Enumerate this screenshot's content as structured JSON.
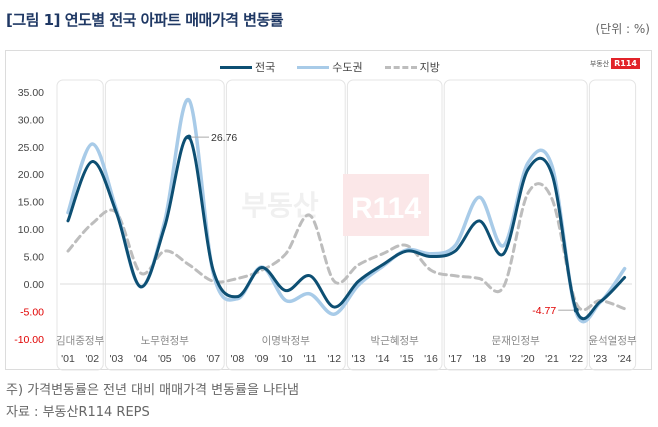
{
  "header": {
    "title": "[그림 1] 연도별 전국 아파트 매매가격 변동률",
    "unit": "(단위 : %)"
  },
  "logo": {
    "text": "부동산",
    "badge": "R114"
  },
  "watermark": {
    "text": "부동산",
    "badge": "R114"
  },
  "legend": [
    {
      "label": "전국",
      "color": "#0d4f73",
      "style": "solid"
    },
    {
      "label": "수도권",
      "color": "#a8cbe8",
      "style": "solid"
    },
    {
      "label": "지방",
      "color": "#bdbdbd",
      "style": "dashed"
    }
  ],
  "footer": {
    "note": "주) 가격변동률은 전년 대비 매매가격 변동률을 나타냄",
    "source": "자료 : 부동산R114 REPS"
  },
  "chart_data": {
    "type": "line",
    "title": "연도별 전국 아파트 매매가격 변동률",
    "xlabel": "",
    "ylabel": "(단위 : %)",
    "ylim": [
      -10,
      35
    ],
    "yticks": [
      "35.00",
      "30.00",
      "25.00",
      "20.00",
      "15.00",
      "10.00",
      "5.00",
      "0.00",
      "-5.00",
      "-10.00"
    ],
    "categories": [
      "'01",
      "'02",
      "'03",
      "'04",
      "'05",
      "'06",
      "'07",
      "'08",
      "'09",
      "'10",
      "'11",
      "'12",
      "'13",
      "'14",
      "'15",
      "'16",
      "'17",
      "'18",
      "'19",
      "'20",
      "'21",
      "'22",
      "'23",
      "'24"
    ],
    "series": [
      {
        "name": "전국",
        "color": "#0d4f73",
        "values": [
          11.5,
          22.3,
          13.0,
          -0.5,
          10.5,
          26.76,
          2.5,
          -2.3,
          3.0,
          -1.2,
          1.5,
          -4.2,
          0.5,
          3.5,
          6.0,
          5.0,
          6.0,
          11.5,
          5.5,
          20.8,
          20.0,
          -4.77,
          -3.2,
          1.2
        ]
      },
      {
        "name": "수도권",
        "color": "#a8cbe8",
        "values": [
          13.0,
          25.5,
          13.5,
          -0.5,
          11.5,
          33.5,
          2.0,
          -2.7,
          3.1,
          -3.0,
          -1.8,
          -5.5,
          -0.2,
          3.2,
          6.2,
          5.5,
          7.0,
          15.8,
          7.0,
          22.0,
          21.5,
          -5.2,
          -3.3,
          2.8
        ]
      },
      {
        "name": "지방",
        "color": "#bdbdbd",
        "values": [
          6.0,
          11.0,
          13.0,
          2.0,
          6.0,
          3.5,
          0.5,
          1.0,
          2.5,
          5.5,
          12.5,
          0.5,
          3.5,
          5.5,
          7.0,
          2.5,
          1.5,
          1.0,
          -0.5,
          16.5,
          15.5,
          -3.5,
          -3.0,
          -4.5
        ]
      }
    ],
    "annotations": [
      {
        "label": "26.76",
        "category": "'06",
        "series": "전국",
        "color": "#333333"
      },
      {
        "label": "-4.77",
        "category": "'22",
        "series": "전국",
        "color": "#e00000"
      }
    ],
    "periods": [
      {
        "label": "김대중정부",
        "start": "'01",
        "end": "'02"
      },
      {
        "label": "노무현정부",
        "start": "'03",
        "end": "'07"
      },
      {
        "label": "이명박정부",
        "start": "'08",
        "end": "'12"
      },
      {
        "label": "박근혜정부",
        "start": "'13",
        "end": "'16"
      },
      {
        "label": "문재인정부",
        "start": "'17",
        "end": "'22"
      },
      {
        "label": "윤석열정부",
        "start": "'23",
        "end": "'24"
      }
    ],
    "grid": false,
    "legend_position": "top"
  }
}
